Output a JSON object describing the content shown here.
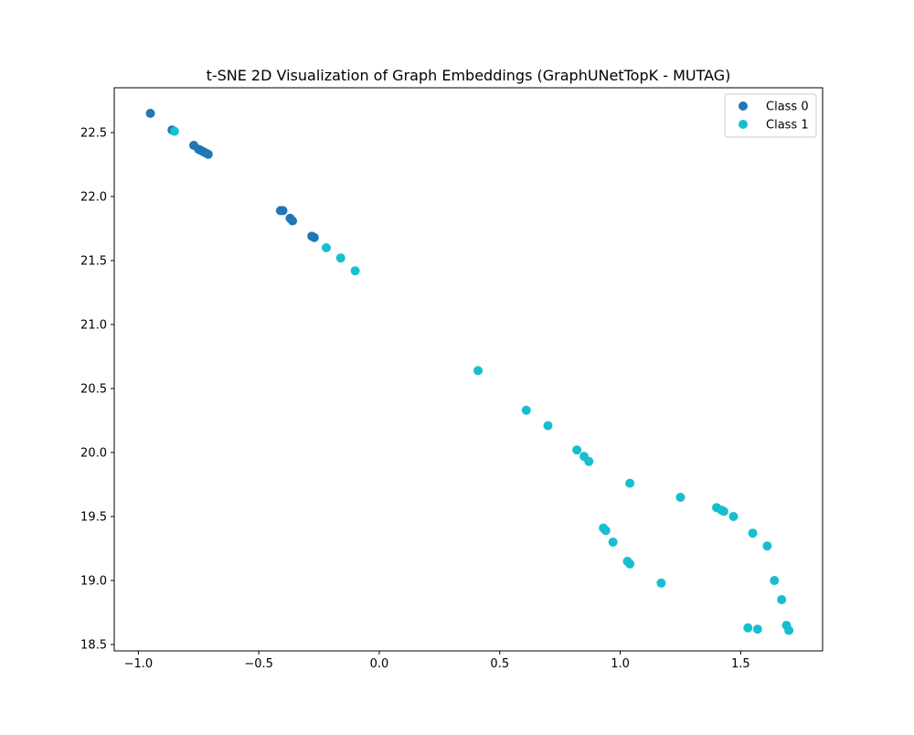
{
  "chart_data": {
    "type": "scatter",
    "title": "t-SNE 2D Visualization of Graph Embeddings (GraphUNetTopK - MUTAG)",
    "xlabel": "",
    "ylabel": "",
    "xlim": [
      -1.1,
      1.84
    ],
    "ylim": [
      18.45,
      22.85
    ],
    "x_ticks": [
      -1.0,
      -0.5,
      0.0,
      0.5,
      1.0,
      1.5
    ],
    "x_tick_labels": [
      "−1.0",
      "−0.5",
      "0.0",
      "0.5",
      "1.0",
      "1.5"
    ],
    "y_ticks": [
      18.5,
      19.0,
      19.5,
      20.0,
      20.5,
      21.0,
      21.5,
      22.0,
      22.5
    ],
    "y_tick_labels": [
      "18.5",
      "19.0",
      "19.5",
      "20.0",
      "20.5",
      "21.0",
      "21.5",
      "22.0",
      "22.5"
    ],
    "grid": false,
    "legend_position": "top-right",
    "series": [
      {
        "name": "Class 0",
        "color": "#1f77b4",
        "points": [
          [
            -0.95,
            22.65
          ],
          [
            -0.86,
            22.52
          ],
          [
            -0.77,
            22.4
          ],
          [
            -0.75,
            22.37
          ],
          [
            -0.74,
            22.36
          ],
          [
            -0.73,
            22.35
          ],
          [
            -0.72,
            22.34
          ],
          [
            -0.71,
            22.33
          ],
          [
            -0.41,
            21.89
          ],
          [
            -0.4,
            21.89
          ],
          [
            -0.37,
            21.83
          ],
          [
            -0.36,
            21.81
          ],
          [
            -0.28,
            21.69
          ],
          [
            -0.27,
            21.68
          ]
        ]
      },
      {
        "name": "Class 1",
        "color": "#17becf",
        "points": [
          [
            -0.85,
            22.51
          ],
          [
            -0.22,
            21.6
          ],
          [
            -0.16,
            21.52
          ],
          [
            -0.1,
            21.42
          ],
          [
            0.41,
            20.64
          ],
          [
            0.61,
            20.33
          ],
          [
            0.7,
            20.21
          ],
          [
            0.82,
            20.02
          ],
          [
            0.85,
            19.97
          ],
          [
            0.87,
            19.93
          ],
          [
            1.04,
            19.76
          ],
          [
            1.25,
            19.65
          ],
          [
            1.4,
            19.57
          ],
          [
            1.42,
            19.55
          ],
          [
            1.43,
            19.54
          ],
          [
            1.47,
            19.5
          ],
          [
            0.93,
            19.41
          ],
          [
            0.94,
            19.39
          ],
          [
            0.97,
            19.3
          ],
          [
            1.55,
            19.37
          ],
          [
            1.61,
            19.27
          ],
          [
            1.03,
            19.15
          ],
          [
            1.04,
            19.13
          ],
          [
            1.17,
            18.98
          ],
          [
            1.64,
            19.0
          ],
          [
            1.67,
            18.85
          ],
          [
            1.53,
            18.63
          ],
          [
            1.57,
            18.62
          ],
          [
            1.69,
            18.65
          ],
          [
            1.7,
            18.61
          ]
        ]
      }
    ]
  }
}
